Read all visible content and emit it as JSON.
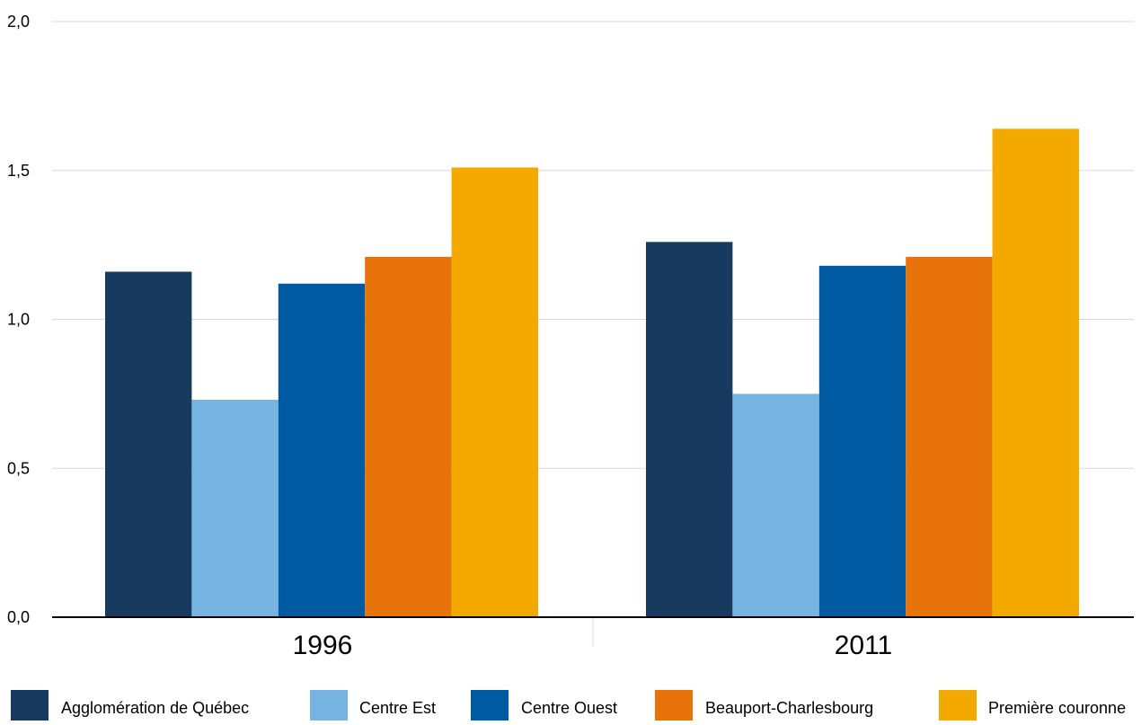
{
  "chart_data": {
    "type": "bar",
    "categories": [
      "1996",
      "2011"
    ],
    "series": [
      {
        "name": "Agglomération de Québec",
        "color": "#173a5e",
        "values": [
          1.16,
          1.26
        ]
      },
      {
        "name": "Centre Est",
        "color": "#78b4e2",
        "values": [
          0.73,
          0.75
        ]
      },
      {
        "name": "Centre Ouest",
        "color": "#005aa2",
        "values": [
          1.12,
          1.18
        ]
      },
      {
        "name": "Beauport-Charlesbourg",
        "color": "#e8730b",
        "values": [
          1.21,
          1.21
        ]
      },
      {
        "name": "Première couronne",
        "color": "#f4a900",
        "values": [
          1.51,
          1.64
        ]
      }
    ],
    "ylim": [
      0,
      2.0
    ],
    "yticks": [
      0.0,
      0.5,
      1.0,
      1.5,
      2.0
    ],
    "ytick_labels": [
      "0,0",
      "0,5",
      "1,0",
      "1,5",
      "2,0"
    ],
    "grid": true,
    "legend_position": "bottom"
  }
}
